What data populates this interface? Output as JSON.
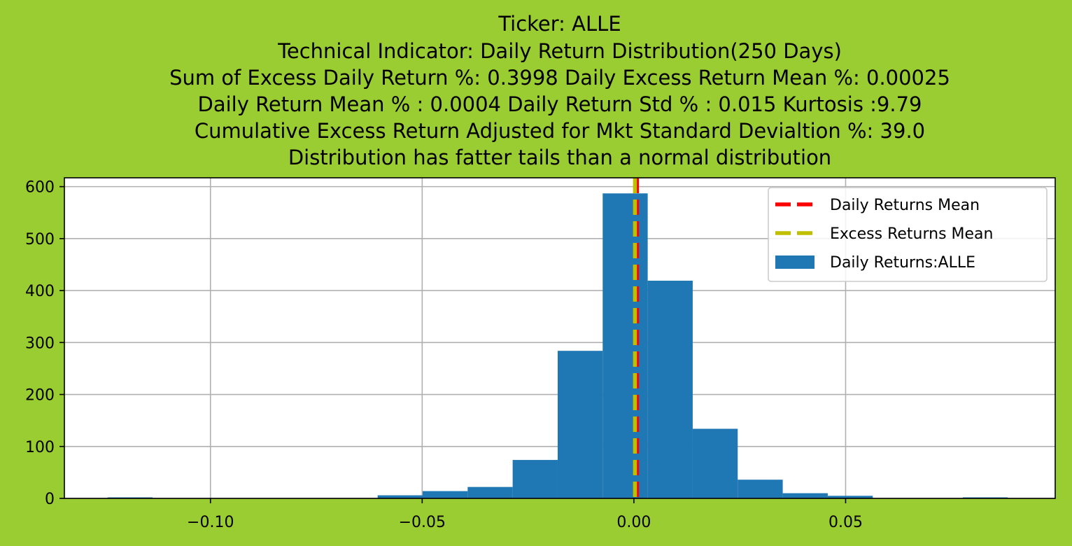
{
  "chart_data": {
    "type": "bar",
    "title_lines": [
      "Ticker: ALLE",
      "Technical Indicator: Daily Return Distribution(250 Days)",
      "Sum of Excess Daily Return %: 0.3998   Daily Excess Return Mean %: 0.00025",
      "Daily Return Mean % : 0.0004    Daily Return Std % : 0.015  Kurtosis :9.79",
      "Cumulative Excess Return Adjusted for Mkt Standard Devialtion %: 39.0",
      "Distribution has fatter tails than a normal distribution"
    ],
    "xlim": [
      -0.1345,
      0.0995
    ],
    "ylim": [
      0,
      617
    ],
    "grid": true,
    "legend_position": "top-right",
    "x_ticks": [
      {
        "value": -0.1,
        "label": "−0.10"
      },
      {
        "value": -0.05,
        "label": "−0.05"
      },
      {
        "value": 0.0,
        "label": "0.00"
      },
      {
        "value": 0.05,
        "label": "0.05"
      }
    ],
    "y_ticks": [
      {
        "value": 0,
        "label": "0"
      },
      {
        "value": 100,
        "label": "100"
      },
      {
        "value": 200,
        "label": "200"
      },
      {
        "value": 300,
        "label": "300"
      },
      {
        "value": 400,
        "label": "400"
      },
      {
        "value": 500,
        "label": "500"
      },
      {
        "value": 600,
        "label": "600"
      }
    ],
    "histogram": {
      "name": "Daily Returns:ALLE",
      "color": "#1f77b4",
      "bin_start": -0.1243,
      "bin_width": 0.01063,
      "counts": [
        2,
        0,
        0,
        0,
        0,
        0,
        6,
        14,
        22,
        74,
        284,
        587,
        419,
        134,
        36,
        10,
        5,
        0,
        0,
        2
      ]
    },
    "mean_lines": [
      {
        "name": "Daily Returns Mean",
        "value": 0.0004,
        "color": "#ff0000"
      },
      {
        "name": "Excess Returns Mean",
        "value": 0.00025,
        "color": "#bfbf00"
      }
    ]
  }
}
